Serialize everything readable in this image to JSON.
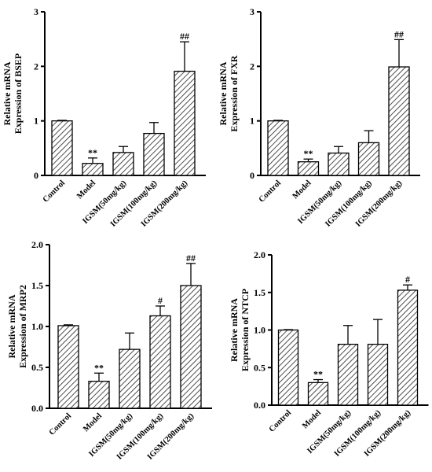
{
  "chart_data": [
    {
      "type": "bar",
      "ylabel_lines": [
        "Relative mRNA",
        "Expression of BSEP"
      ],
      "categories": [
        "Control",
        "Model",
        "IGSM(50mg/kg)",
        "IGSM(100mg/kg)",
        "IGSM(200mg/kg)"
      ],
      "values": [
        1.0,
        0.22,
        0.42,
        0.77,
        1.91
      ],
      "errors": [
        0.01,
        0.1,
        0.11,
        0.2,
        0.54
      ],
      "annotations": [
        "",
        "**",
        "",
        "",
        "##"
      ],
      "ylim": [
        0,
        3
      ],
      "yticks": [
        0,
        1,
        2,
        3
      ],
      "ytick_labels": [
        "0",
        "1",
        "2",
        "3"
      ],
      "grid": false
    },
    {
      "type": "bar",
      "ylabel_lines": [
        "Relative mRNA",
        "Expression of FXR"
      ],
      "categories": [
        "Control",
        "Model",
        "IGSM(50mg/kg)",
        "IGSM(100mg/kg)",
        "IGSM(200mg/kg)"
      ],
      "values": [
        1.0,
        0.25,
        0.41,
        0.6,
        1.99
      ],
      "errors": [
        0.01,
        0.05,
        0.12,
        0.22,
        0.5
      ],
      "annotations": [
        "",
        "**",
        "",
        "",
        "##"
      ],
      "ylim": [
        0,
        3
      ],
      "yticks": [
        0,
        1,
        2,
        3
      ],
      "ytick_labels": [
        "0",
        "1",
        "2",
        "3"
      ],
      "grid": false
    },
    {
      "type": "bar",
      "ylabel_lines": [
        "Relative mRNA",
        "Expression of MRP2"
      ],
      "categories": [
        "Control",
        "Model",
        "IGSM(50mg/kg)",
        "IGSM(100mg/kg)",
        "IGSM(200mg/kg)"
      ],
      "values": [
        1.01,
        0.33,
        0.72,
        1.13,
        1.5
      ],
      "errors": [
        0.01,
        0.1,
        0.2,
        0.12,
        0.27
      ],
      "annotations": [
        "",
        "**",
        "",
        "#",
        "##"
      ],
      "ylim": [
        0,
        2.0
      ],
      "yticks": [
        0,
        0.5,
        1.0,
        1.5,
        2.0
      ],
      "ytick_labels": [
        "0.0",
        "0.5",
        "1.0",
        "1.5",
        "2.0"
      ],
      "grid": false
    },
    {
      "type": "bar",
      "ylabel_lines": [
        "Relative mRNA",
        "Expression of NTCP"
      ],
      "categories": [
        "Control",
        "Model",
        "IGSM(50mg/kg)",
        "IGSM(100mg/kg)",
        "IGSM(200mg/kg)"
      ],
      "values": [
        1.0,
        0.3,
        0.81,
        0.81,
        1.53
      ],
      "errors": [
        0.005,
        0.04,
        0.25,
        0.33,
        0.07
      ],
      "annotations": [
        "",
        "**",
        "",
        "",
        "#"
      ],
      "ylim": [
        0,
        2.0
      ],
      "yticks": [
        0,
        0.5,
        1.0,
        1.5,
        2.0
      ],
      "ytick_labels": [
        "0.0",
        "0.5",
        "1.0",
        "1.5",
        "2.0"
      ],
      "grid": false
    }
  ]
}
